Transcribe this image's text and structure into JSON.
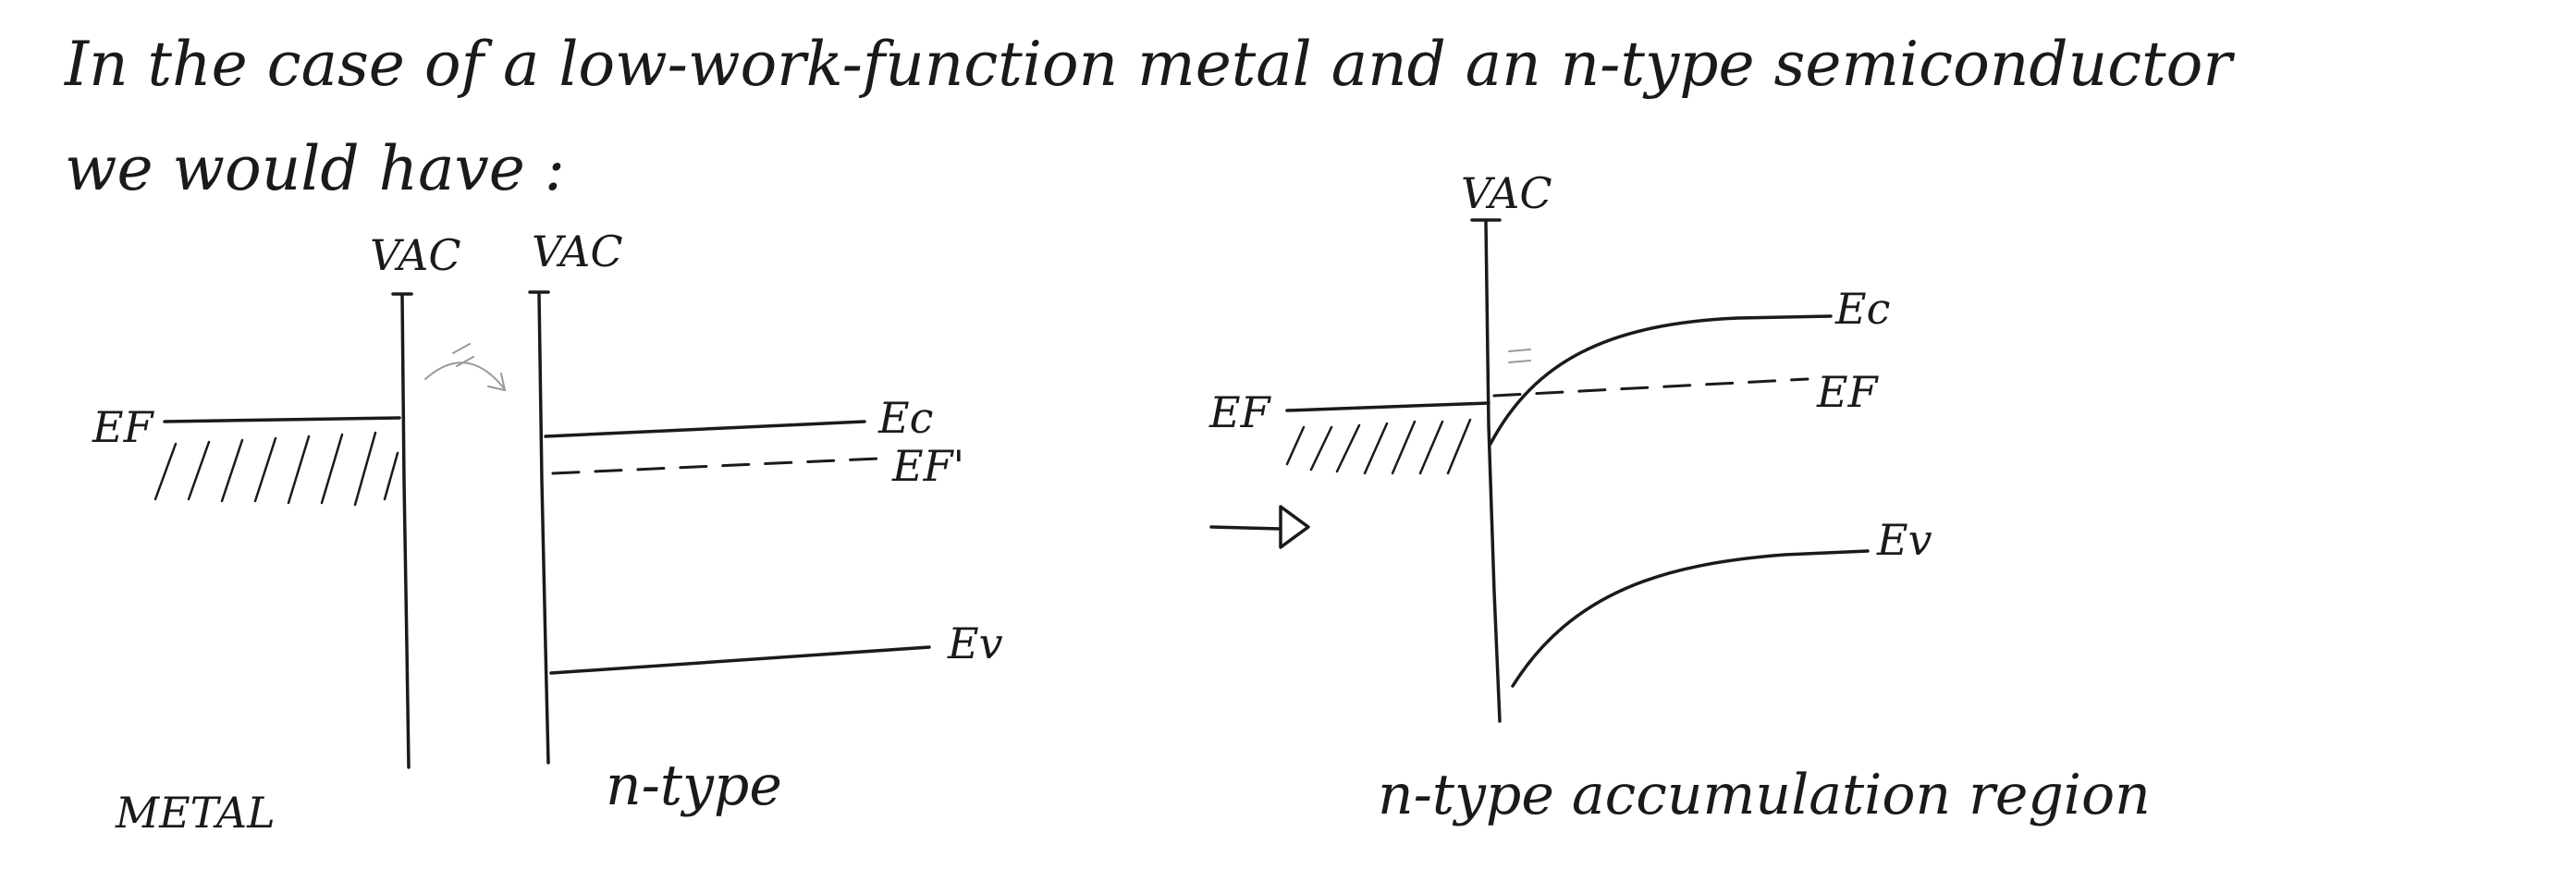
{
  "intro": {
    "line1": "In the case of a low-work-function metal and an n-type semiconductor",
    "line2": "we would have :"
  },
  "left_diagram": {
    "vac_metal": "VAC",
    "vac_semi": "VAC",
    "ef_metal": "EF",
    "ec": "Ec",
    "ef_semi": "EF'",
    "ev": "Ev",
    "metal_caption": "METAL",
    "semi_caption": "n-type"
  },
  "right_diagram": {
    "vac": "VAC",
    "ef_metal": "EF",
    "ec": "Ec",
    "ef_semi": "EF",
    "ev": "Ev",
    "caption": "n-type accumulation region"
  }
}
